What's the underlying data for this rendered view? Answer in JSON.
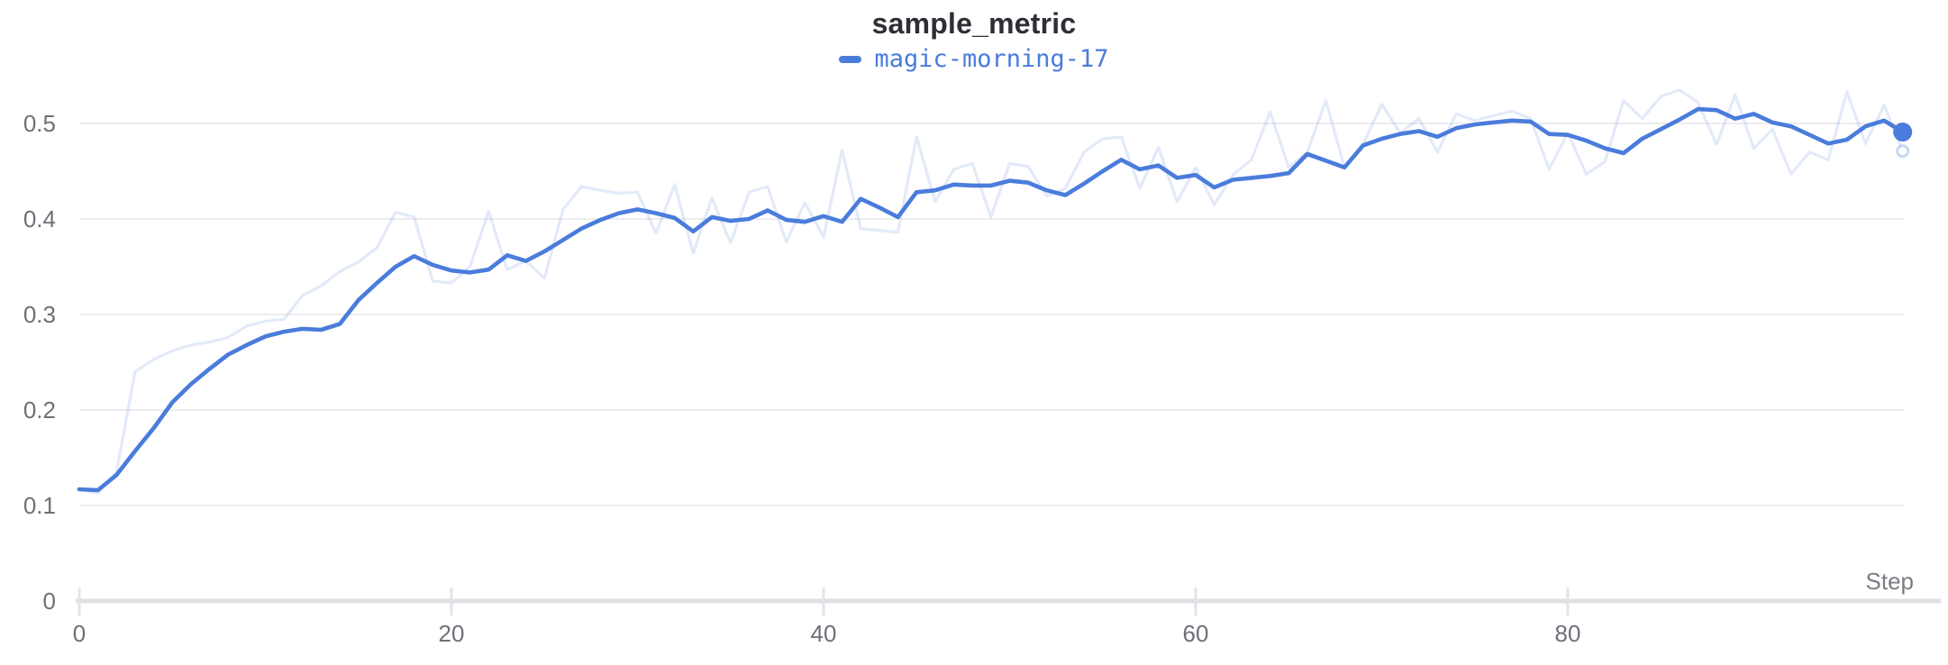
{
  "panel": {
    "background": "#ffffff"
  },
  "colors": {
    "run_blue": "#4a7cdb",
    "title_text": "#2e2e35",
    "tick_label": "#6f6f79",
    "axis_title": "#7c7c84",
    "gridline": "#ececf0",
    "axis_line": "#dfdfe4",
    "tick_mark": "#e3e3e8"
  },
  "chart_data": {
    "type": "line",
    "title": "sample_metric",
    "xlabel": "Step",
    "ylabel": "",
    "grid": "horizontal",
    "legend": {
      "position": "top-center",
      "entries": [
        {
          "label": "magic-morning-17",
          "color": "#4a7cdb"
        }
      ]
    },
    "x_ticks": [
      0,
      20,
      40,
      60,
      80
    ],
    "x_tick_labels": [
      "0",
      "20",
      "40",
      "60",
      "80"
    ],
    "y_ticks": [
      0,
      0.1,
      0.2,
      0.3,
      0.4,
      0.5
    ],
    "y_tick_labels": [
      "0",
      "0.1",
      "0.2",
      "0.3",
      "0.4",
      "0.5"
    ],
    "xlim": [
      0,
      99.5
    ],
    "ylim": [
      0,
      0.549
    ],
    "x": [
      0,
      1,
      2,
      3,
      4,
      5,
      6,
      7,
      8,
      9,
      10,
      11,
      12,
      13,
      14,
      15,
      16,
      17,
      18,
      19,
      20,
      21,
      22,
      23,
      24,
      25,
      26,
      27,
      28,
      29,
      30,
      31,
      32,
      33,
      34,
      35,
      36,
      37,
      38,
      39,
      40,
      41,
      42,
      43,
      44,
      45,
      46,
      47,
      48,
      49,
      50,
      51,
      52,
      53,
      54,
      55,
      56,
      57,
      58,
      59,
      60,
      61,
      62,
      63,
      64,
      65,
      66,
      67,
      68,
      69,
      70,
      71,
      72,
      73,
      74,
      75,
      76,
      77,
      78,
      79,
      80,
      81,
      82,
      83,
      84,
      85,
      86,
      87,
      88,
      89,
      90,
      91,
      92,
      93,
      94,
      95,
      96,
      97,
      98
    ],
    "series": [
      {
        "name": "magic-morning-17",
        "variant": "original-unsmoothed",
        "color": "#4a7cdb",
        "opacity": 0.16,
        "end_marker": "open-circle",
        "values": [
          0.117,
          0.113,
          0.135,
          0.24,
          0.253,
          0.262,
          0.268,
          0.271,
          0.276,
          0.288,
          0.293,
          0.295,
          0.32,
          0.33,
          0.345,
          0.355,
          0.37,
          0.407,
          0.402,
          0.335,
          0.333,
          0.35,
          0.408,
          0.347,
          0.356,
          0.338,
          0.41,
          0.434,
          0.43,
          0.427,
          0.428,
          0.385,
          0.436,
          0.364,
          0.422,
          0.375,
          0.428,
          0.434,
          0.376,
          0.417,
          0.381,
          0.472,
          0.39,
          0.388,
          0.386,
          0.486,
          0.418,
          0.452,
          0.458,
          0.402,
          0.458,
          0.455,
          0.424,
          0.432,
          0.47,
          0.484,
          0.486,
          0.432,
          0.475,
          0.418,
          0.454,
          0.415,
          0.446,
          0.462,
          0.512,
          0.454,
          0.47,
          0.524,
          0.454,
          0.478,
          0.52,
          0.49,
          0.505,
          0.47,
          0.51,
          0.503,
          0.508,
          0.513,
          0.505,
          0.452,
          0.49,
          0.447,
          0.46,
          0.524,
          0.505,
          0.528,
          0.535,
          0.522,
          0.478,
          0.53,
          0.474,
          0.494,
          0.447,
          0.47,
          0.462,
          0.533,
          0.479,
          0.519,
          0.471
        ]
      },
      {
        "name": "magic-morning-17",
        "variant": "smoothed",
        "color": "#4a7cdb",
        "opacity": 1,
        "end_marker": "dot",
        "values": [
          0.117,
          0.116,
          0.132,
          0.157,
          0.181,
          0.208,
          0.227,
          0.243,
          0.258,
          0.268,
          0.277,
          0.282,
          0.285,
          0.284,
          0.29,
          0.315,
          0.333,
          0.35,
          0.361,
          0.352,
          0.346,
          0.344,
          0.347,
          0.362,
          0.356,
          0.366,
          0.378,
          0.39,
          0.399,
          0.406,
          0.41,
          0.406,
          0.401,
          0.387,
          0.402,
          0.398,
          0.4,
          0.409,
          0.399,
          0.397,
          0.403,
          0.397,
          0.421,
          0.412,
          0.402,
          0.428,
          0.43,
          0.436,
          0.435,
          0.435,
          0.44,
          0.438,
          0.43,
          0.425,
          0.437,
          0.45,
          0.462,
          0.452,
          0.456,
          0.443,
          0.446,
          0.433,
          0.441,
          0.443,
          0.445,
          0.448,
          0.468,
          0.461,
          0.454,
          0.477,
          0.484,
          0.489,
          0.492,
          0.486,
          0.495,
          0.499,
          0.501,
          0.503,
          0.502,
          0.489,
          0.488,
          0.482,
          0.474,
          0.469,
          0.484,
          0.494,
          0.504,
          0.515,
          0.514,
          0.505,
          0.51,
          0.501,
          0.497,
          0.488,
          0.479,
          0.483,
          0.497,
          0.503,
          0.491
        ]
      }
    ]
  }
}
